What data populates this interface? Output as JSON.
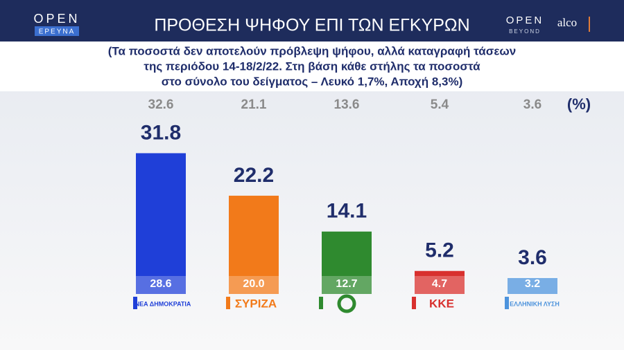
{
  "header": {
    "brand_left": "OPEN",
    "brand_left_sub": "ΕΡΕΥΝΑ",
    "brand_right": "OPEN",
    "brand_right_sub": "BEYOND",
    "partner": "alco"
  },
  "chart_data": {
    "type": "bar",
    "title": "ΠΡΟΘΕΣΗ ΨΗΦΟΥ ΕΠΙ ΤΩΝ ΕΓΚΥΡΩΝ",
    "subtitle": [
      "(Τα ποσοστά δεν αποτελούν πρόβλεψη ψήφου, αλλά καταγραφή τάσεων",
      "της περιόδου 14-18/2/22. Στη βάση κάθε στήλης τα ποσοστά",
      "στο σύνολο του δείγματος – Λευκό 1,7%, Αποχή 8,3%)"
    ],
    "unit_label": "(%)",
    "categories": [
      "ΝΕΑ ΔΗΜΟΚΡΑΤΙΑ",
      "ΣΥΡΙΖΑ",
      null,
      "ΚΚΕ",
      "ΕΛΛΗΝΙΚΗ ΛΥΣΗ"
    ],
    "colors": [
      "#1f3fd8",
      "#f27a1a",
      "#2f8a2f",
      "#d8302e",
      "#4d93dc"
    ],
    "series": [
      {
        "values": [
          31.8,
          22.2,
          14.1,
          5.2,
          3.6
        ]
      },
      {
        "values": [
          28.6,
          20.0,
          12.7,
          4.7,
          3.2
        ],
        "value_labels": [
          "28.6",
          "20.0",
          "12.7",
          "4.7",
          "3.2"
        ]
      },
      {
        "values": [
          32.6,
          21.1,
          13.6,
          5.4,
          3.6
        ]
      }
    ]
  }
}
